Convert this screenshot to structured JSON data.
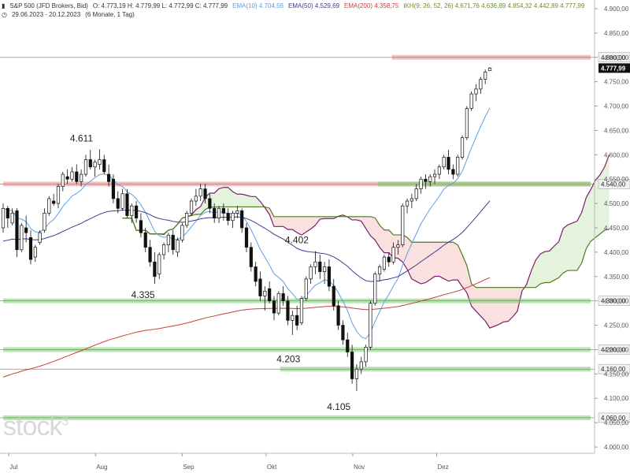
{
  "header": {
    "instrument": "S&P 500 (JFD Brokers, Bid)",
    "ohlc": "O: 4.773,19  H: 4.779,99  L: 4.772,99  C: 4.777,99",
    "range": "29.06.2023 - 20.12.2023",
    "period": "(6 Monate, 1 Tag)",
    "indicators": [
      {
        "label": "EMA(10)",
        "value": "4.704,56",
        "color": "#5aa0e6"
      },
      {
        "label": "EMA(50)",
        "value": "4.529,69",
        "color": "#3b3b8f"
      },
      {
        "label": "EMA(200)",
        "value": "4.358,75",
        "color": "#c8423c"
      },
      {
        "label": "IKH(9, 26, 52, 26)",
        "value": "4.671,76  4.636,89  4.854,32  4.442,89  4.777,99",
        "color": "#6b8e2a"
      }
    ]
  },
  "watermark": "stock",
  "watermark_sup": "3",
  "colors": {
    "candle_up": "#ffffff",
    "candle_down": "#111111",
    "ema10": "#5aa0e6",
    "ema50": "#3b3b8f",
    "ema200": "#c8423c",
    "cloud_green": "#e3f3dc",
    "cloud_red": "#fbe0e0",
    "span_a": "#7a1f6e",
    "span_b": "#4f7a22",
    "support": "#7ccf6e",
    "resistance": "#e8908c"
  },
  "chart_data": {
    "type": "candlestick",
    "ylim": [
      4000,
      4900
    ],
    "yticks": [
      "4.000,00",
      "4.050,00",
      "4.100,00",
      "4.150,00",
      "4.200,00",
      "4.250,00",
      "4.300,00",
      "4.350,00",
      "4.400,00",
      "4.450,00",
      "4.500,00",
      "4.550,00",
      "4.600,00",
      "4.650,00",
      "4.700,00",
      "4.750,00",
      "4.800,00",
      "4.850,00",
      "4.900,00"
    ],
    "ytick_values": [
      4000,
      4050,
      4100,
      4150,
      4200,
      4250,
      4300,
      4350,
      4400,
      4450,
      4500,
      4550,
      4600,
      4650,
      4700,
      4750,
      4800,
      4850,
      4900
    ],
    "x_dates": [
      "2023-06-29",
      "2023-12-20"
    ],
    "xticks": [
      {
        "label": "Jul",
        "date": "2023-07-01"
      },
      {
        "label": "Aug",
        "date": "2023-08-01"
      },
      {
        "label": "Sep",
        "date": "2023-09-01"
      },
      {
        "label": "Okt",
        "date": "2023-10-01"
      },
      {
        "label": "Nov",
        "date": "2023-11-01"
      },
      {
        "label": "Dez",
        "date": "2023-12-01"
      }
    ],
    "last_price_label": "4.777,99",
    "last_price": 4777.99,
    "annotations": [
      {
        "text": "4.611",
        "date": "2023-07-27",
        "value": 4611,
        "pos": "above"
      },
      {
        "text": "4.335",
        "date": "2023-08-18",
        "value": 4335,
        "pos": "below"
      },
      {
        "text": "4.402",
        "date": "2023-10-12",
        "value": 4402,
        "pos": "above"
      },
      {
        "text": "4.203",
        "date": "2023-10-09",
        "value": 4203,
        "pos": "below"
      },
      {
        "text": "4.105",
        "date": "2023-10-27",
        "value": 4105,
        "pos": "below"
      }
    ],
    "hlines": [
      {
        "value": 4800,
        "label": "4.800,00",
        "kind": "resistance",
        "from": "2023-11-15"
      },
      {
        "value": 4540,
        "label": "4.540,00",
        "kind": "resistance-support",
        "from": "2023-06-29"
      },
      {
        "value": 4300,
        "label": "4.300,00",
        "kind": "support",
        "from": "2023-06-29"
      },
      {
        "value": 4200,
        "label": "4.200,00",
        "kind": "support",
        "from": "2023-06-29"
      },
      {
        "value": 4160,
        "label": "4.160,00",
        "kind": "support",
        "from": "2023-10-06"
      },
      {
        "value": 4060,
        "label": "4.060,00",
        "kind": "support",
        "from": "2023-06-29"
      }
    ],
    "candles": [
      [
        4450,
        4500,
        4440,
        4490
      ],
      [
        4490,
        4495,
        4450,
        4470
      ],
      [
        4460,
        4490,
        4455,
        4480
      ],
      [
        4485,
        4490,
        4390,
        4405
      ],
      [
        4405,
        4460,
        4400,
        4455
      ],
      [
        4450,
        4475,
        4420,
        4440
      ],
      [
        4430,
        4445,
        4375,
        4385
      ],
      [
        4390,
        4415,
        4380,
        4410
      ],
      [
        4420,
        4445,
        4415,
        4440
      ],
      [
        4445,
        4490,
        4440,
        4480
      ],
      [
        4480,
        4515,
        4475,
        4510
      ],
      [
        4505,
        4520,
        4495,
        4500
      ],
      [
        4500,
        4540,
        4490,
        4535
      ],
      [
        4535,
        4565,
        4525,
        4560
      ],
      [
        4555,
        4570,
        4540,
        4550
      ],
      [
        4550,
        4575,
        4545,
        4565
      ],
      [
        4565,
        4580,
        4540,
        4545
      ],
      [
        4545,
        4570,
        4535,
        4560
      ],
      [
        4560,
        4600,
        4555,
        4590
      ],
      [
        4590,
        4610,
        4570,
        4575
      ],
      [
        4575,
        4590,
        4555,
        4585
      ],
      [
        4580,
        4611,
        4570,
        4590
      ],
      [
        4590,
        4600,
        4560,
        4565
      ],
      [
        4560,
        4580,
        4535,
        4545
      ],
      [
        4550,
        4560,
        4500,
        4510
      ],
      [
        4510,
        4525,
        4480,
        4490
      ],
      [
        4490,
        4530,
        4485,
        4520
      ],
      [
        4520,
        4530,
        4470,
        4475
      ],
      [
        4475,
        4500,
        4460,
        4495
      ],
      [
        4495,
        4505,
        4460,
        4470
      ],
      [
        4465,
        4480,
        4430,
        4440
      ],
      [
        4440,
        4450,
        4400,
        4410
      ],
      [
        4410,
        4425,
        4370,
        4380
      ],
      [
        4380,
        4400,
        4335,
        4350
      ],
      [
        4355,
        4400,
        4345,
        4395
      ],
      [
        4395,
        4420,
        4385,
        4415
      ],
      [
        4415,
        4440,
        4400,
        4435
      ],
      [
        4435,
        4445,
        4395,
        4405
      ],
      [
        4400,
        4430,
        4390,
        4425
      ],
      [
        4425,
        4460,
        4420,
        4455
      ],
      [
        4455,
        4485,
        4450,
        4480
      ],
      [
        4480,
        4510,
        4475,
        4505
      ],
      [
        4505,
        4530,
        4495,
        4515
      ],
      [
        4515,
        4540,
        4505,
        4530
      ],
      [
        4530,
        4540,
        4500,
        4510
      ],
      [
        4510,
        4520,
        4480,
        4490
      ],
      [
        4490,
        4500,
        4460,
        4470
      ],
      [
        4470,
        4495,
        4460,
        4490
      ],
      [
        4490,
        4500,
        4465,
        4480
      ],
      [
        4480,
        4490,
        4455,
        4465
      ],
      [
        4465,
        4485,
        4450,
        4480
      ],
      [
        4480,
        4495,
        4470,
        4485
      ],
      [
        4485,
        4490,
        4440,
        4450
      ],
      [
        4450,
        4460,
        4400,
        4410
      ],
      [
        4410,
        4420,
        4360,
        4370
      ],
      [
        4370,
        4380,
        4330,
        4340
      ],
      [
        4345,
        4360,
        4300,
        4310
      ],
      [
        4310,
        4330,
        4280,
        4320
      ],
      [
        4325,
        4340,
        4295,
        4300
      ],
      [
        4300,
        4310,
        4260,
        4275
      ],
      [
        4275,
        4320,
        4270,
        4315
      ],
      [
        4315,
        4330,
        4290,
        4300
      ],
      [
        4300,
        4310,
        4250,
        4260
      ],
      [
        4260,
        4280,
        4230,
        4270
      ],
      [
        4270,
        4290,
        4240,
        4250
      ],
      [
        4255,
        4310,
        4250,
        4305
      ],
      [
        4305,
        4350,
        4300,
        4345
      ],
      [
        4345,
        4375,
        4335,
        4370
      ],
      [
        4370,
        4402,
        4355,
        4380
      ],
      [
        4380,
        4395,
        4345,
        4360
      ],
      [
        4360,
        4380,
        4335,
        4370
      ],
      [
        4370,
        4385,
        4320,
        4330
      ],
      [
        4330,
        4345,
        4280,
        4290
      ],
      [
        4290,
        4300,
        4240,
        4250
      ],
      [
        4250,
        4260,
        4210,
        4220
      ],
      [
        4220,
        4235,
        4185,
        4195
      ],
      [
        4195,
        4210,
        4130,
        4140
      ],
      [
        4140,
        4170,
        4115,
        4160
      ],
      [
        4160,
        4185,
        4150,
        4175
      ],
      [
        4175,
        4210,
        4165,
        4205
      ],
      [
        4205,
        4300,
        4200,
        4295
      ],
      [
        4295,
        4360,
        4290,
        4355
      ],
      [
        4355,
        4375,
        4340,
        4370
      ],
      [
        4365,
        4395,
        4360,
        4390
      ],
      [
        4390,
        4400,
        4370,
        4380
      ],
      [
        4380,
        4420,
        4375,
        4410
      ],
      [
        4410,
        4425,
        4395,
        4415
      ],
      [
        4415,
        4500,
        4410,
        4495
      ],
      [
        4495,
        4510,
        4480,
        4505
      ],
      [
        4505,
        4520,
        4490,
        4510
      ],
      [
        4510,
        4540,
        4505,
        4530
      ],
      [
        4530,
        4555,
        4520,
        4550
      ],
      [
        4550,
        4560,
        4530,
        4545
      ],
      [
        4545,
        4560,
        4535,
        4555
      ],
      [
        4555,
        4570,
        4540,
        4560
      ],
      [
        4560,
        4580,
        4550,
        4575
      ],
      [
        4575,
        4600,
        4570,
        4595
      ],
      [
        4595,
        4610,
        4560,
        4570
      ],
      [
        4570,
        4580,
        4550,
        4560
      ],
      [
        4560,
        4600,
        4555,
        4595
      ],
      [
        4595,
        4640,
        4590,
        4635
      ],
      [
        4635,
        4700,
        4630,
        4695
      ],
      [
        4695,
        4730,
        4690,
        4725
      ],
      [
        4725,
        4745,
        4710,
        4735
      ],
      [
        4735,
        4760,
        4725,
        4755
      ],
      [
        4755,
        4775,
        4745,
        4770
      ],
      [
        4773,
        4780,
        4773,
        4778
      ]
    ]
  }
}
